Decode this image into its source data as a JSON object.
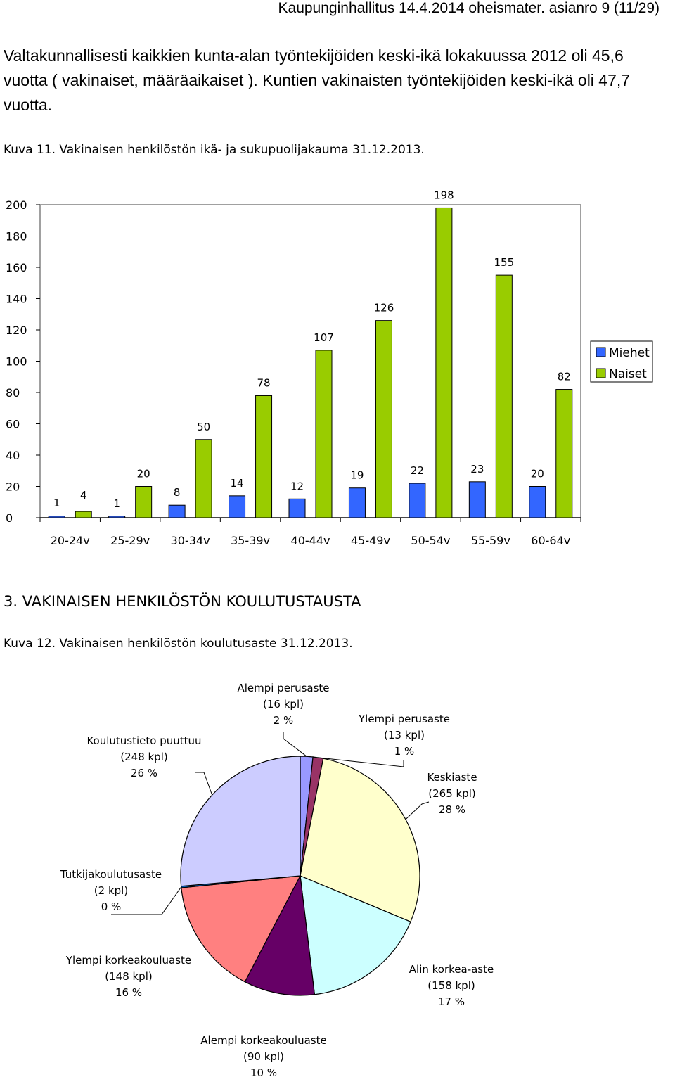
{
  "document": {
    "header": "Kaupunginhallitus 14.4.2014 oheismater. asianro 9 (11/29)",
    "paragraph": "Valtakunnallisesti kaikkien kunta-alan työntekijöiden keski-ikä lokakuussa 2012 oli 45,6 vuotta ( vakinaiset, määräaikaiset ). Kuntien vakinaisten työntekijöiden keski-ikä oli 47,7 vuotta.",
    "figure1_caption": "Kuva 11. Vakinaisen henkilöstön ikä- ja sukupuolijakauma 31.12.2013.",
    "section_heading": "3. VAKINAISEN HENKILÖSTÖN KOULUTUSTAUSTA",
    "figure2_caption": "Kuva 12. Vakinaisen henkilöstön koulutusaste 31.12.2013."
  },
  "colors": {
    "miehet": "#3366ff",
    "naiset": "#99cc00",
    "plot_bg": "#ffffff",
    "frame": "#808080"
  },
  "chart_data": [
    {
      "type": "bar",
      "categories": [
        "20-24v",
        "25-29v",
        "30-34v",
        "35-39v",
        "40-44v",
        "45-49v",
        "50-54v",
        "55-59v",
        "60-64v"
      ],
      "series": [
        {
          "name": "Miehet",
          "values": [
            1,
            1,
            8,
            14,
            12,
            19,
            22,
            23,
            20
          ]
        },
        {
          "name": "Naiset",
          "values": [
            4,
            20,
            50,
            78,
            107,
            126,
            198,
            155,
            82
          ]
        }
      ],
      "yticks": [
        "0",
        "20",
        "40",
        "60",
        "80",
        "100",
        "120",
        "140",
        "160",
        "180",
        "200"
      ],
      "ylim": [
        0,
        200
      ],
      "grid": false,
      "legend": "right",
      "data_labels": true
    },
    {
      "type": "pie",
      "slices": [
        {
          "label": "Alempi perusaste",
          "count": "(16 kpl)",
          "percent": "2 %",
          "value": 16,
          "color": "#9999ff"
        },
        {
          "label": "Ylempi perusaste",
          "count": "(13 kpl)",
          "percent": "1 %",
          "value": 13,
          "color": "#993366"
        },
        {
          "label": "Keskiaste",
          "count": "(265 kpl)",
          "percent": "28 %",
          "value": 265,
          "color": "#ffffcc"
        },
        {
          "label": "Alin korkea-aste",
          "count": "(158 kpl)",
          "percent": "17 %",
          "value": 158,
          "color": "#ccffff"
        },
        {
          "label": "Alempi korkeakouluaste",
          "count": "(90 kpl)",
          "percent": "10 %",
          "value": 90,
          "color": "#660066"
        },
        {
          "label": "Ylempi korkeakouluaste",
          "count": "(148 kpl)",
          "percent": "16 %",
          "value": 148,
          "color": "#ff8080"
        },
        {
          "label": "Tutkijakoulutusaste",
          "count": "(2 kpl)",
          "percent": "0 %",
          "value": 2,
          "color": "#0066cc"
        },
        {
          "label": "Koulutustieto puuttuu",
          "count": "(248 kpl)",
          "percent": "26 %",
          "value": 248,
          "color": "#ccccff"
        }
      ],
      "start": "top",
      "direction": "clockwise"
    }
  ]
}
